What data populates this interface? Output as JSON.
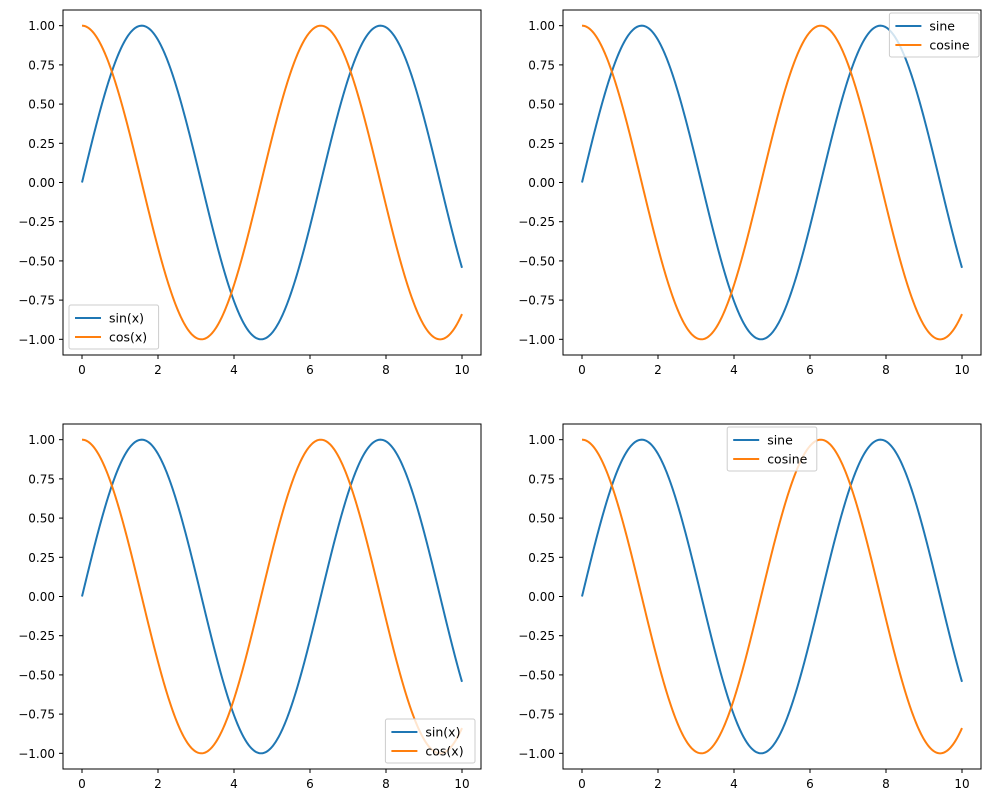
{
  "chart_data": [
    {
      "type": "line",
      "title": "",
      "xlabel": "",
      "ylabel": "",
      "xlim": [
        -0.5,
        10.5
      ],
      "ylim": [
        -1.1,
        1.1
      ],
      "x_ticks": [
        0,
        2,
        4,
        6,
        8,
        10
      ],
      "y_ticks": [
        1.0,
        0.75,
        0.5,
        0.25,
        0.0,
        -0.25,
        -0.5,
        -0.75,
        -1.0
      ],
      "x_range": [
        0,
        10
      ],
      "grid": false,
      "legend": {
        "placement": "lower-left",
        "entries": [
          "sin(x)",
          "cos(x)"
        ]
      },
      "series": [
        {
          "name": "sin(x)",
          "function": "sin",
          "color": "#1f77b4"
        },
        {
          "name": "cos(x)",
          "function": "cos",
          "color": "#ff7f0e"
        }
      ]
    },
    {
      "type": "line",
      "title": "",
      "xlabel": "",
      "ylabel": "",
      "xlim": [
        -0.5,
        10.5
      ],
      "ylim": [
        -1.1,
        1.1
      ],
      "x_ticks": [
        0,
        2,
        4,
        6,
        8,
        10
      ],
      "y_ticks": [
        1.0,
        0.75,
        0.5,
        0.25,
        0.0,
        -0.25,
        -0.5,
        -0.75,
        -1.0
      ],
      "x_range": [
        0,
        10
      ],
      "grid": false,
      "legend": {
        "placement": "upper-right",
        "entries": [
          "sine",
          "cosine"
        ]
      },
      "series": [
        {
          "name": "sine",
          "function": "sin",
          "color": "#1f77b4"
        },
        {
          "name": "cosine",
          "function": "cos",
          "color": "#ff7f0e"
        }
      ]
    },
    {
      "type": "line",
      "title": "",
      "xlabel": "",
      "ylabel": "",
      "xlim": [
        -0.5,
        10.5
      ],
      "ylim": [
        -1.1,
        1.1
      ],
      "x_ticks": [
        0,
        2,
        4,
        6,
        8,
        10
      ],
      "y_ticks": [
        1.0,
        0.75,
        0.5,
        0.25,
        0.0,
        -0.25,
        -0.5,
        -0.75,
        -1.0
      ],
      "x_range": [
        0,
        10
      ],
      "grid": false,
      "legend": {
        "placement": "lower-right",
        "entries": [
          "sin(x)",
          "cos(x)"
        ]
      },
      "series": [
        {
          "name": "sin(x)",
          "function": "sin",
          "color": "#1f77b4"
        },
        {
          "name": "cos(x)",
          "function": "cos",
          "color": "#ff7f0e"
        }
      ]
    },
    {
      "type": "line",
      "title": "",
      "xlabel": "",
      "ylabel": "",
      "xlim": [
        -0.5,
        10.5
      ],
      "ylim": [
        -1.1,
        1.1
      ],
      "x_ticks": [
        0,
        2,
        4,
        6,
        8,
        10
      ],
      "y_ticks": [
        1.0,
        0.75,
        0.5,
        0.25,
        0.0,
        -0.25,
        -0.5,
        -0.75,
        -1.0
      ],
      "x_range": [
        0,
        10
      ],
      "grid": false,
      "legend": {
        "placement": "upper-center",
        "entries": [
          "sine",
          "cosine"
        ]
      },
      "series": [
        {
          "name": "sine",
          "function": "sin",
          "color": "#1f77b4"
        },
        {
          "name": "cosine",
          "function": "cos",
          "color": "#ff7f0e"
        }
      ]
    }
  ]
}
